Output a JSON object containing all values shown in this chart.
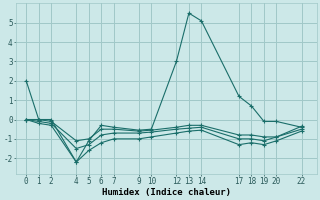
{
  "xlabel": "Humidex (Indice chaleur)",
  "background_color": "#cce8e8",
  "grid_color": "#a0c8c8",
  "line_color": "#1a6e6a",
  "xlim": [
    -0.8,
    23.2
  ],
  "ylim": [
    -2.8,
    6.0
  ],
  "xticks": [
    0,
    1,
    2,
    4,
    5,
    6,
    7,
    9,
    10,
    12,
    13,
    14,
    17,
    18,
    19,
    20,
    22
  ],
  "yticks": [
    -2,
    -1,
    0,
    1,
    2,
    3,
    4,
    5
  ],
  "lines": [
    {
      "x": [
        0,
        1,
        2,
        4,
        5,
        6,
        7,
        9,
        10,
        12,
        13,
        14,
        17,
        18,
        19,
        20,
        22
      ],
      "y": [
        2.0,
        0.0,
        0.0,
        -2.2,
        -1.1,
        -0.3,
        -0.4,
        -0.55,
        -0.5,
        3.0,
        5.5,
        5.1,
        1.2,
        0.7,
        -0.1,
        -0.1,
        -0.4
      ]
    },
    {
      "x": [
        0,
        1,
        2,
        4,
        5,
        6,
        7,
        9,
        10,
        12,
        13,
        14,
        17,
        18,
        19,
        20,
        22
      ],
      "y": [
        0.0,
        0.0,
        -0.1,
        -1.1,
        -1.0,
        -0.5,
        -0.5,
        -0.6,
        -0.55,
        -0.4,
        -0.3,
        -0.3,
        -0.8,
        -0.8,
        -0.9,
        -0.9,
        -0.35
      ]
    },
    {
      "x": [
        0,
        1,
        2,
        4,
        5,
        6,
        7,
        9,
        10,
        12,
        13,
        14,
        17,
        18,
        19,
        20,
        22
      ],
      "y": [
        0.0,
        -0.1,
        -0.2,
        -1.5,
        -1.3,
        -0.8,
        -0.7,
        -0.7,
        -0.65,
        -0.5,
        -0.45,
        -0.4,
        -1.0,
        -1.0,
        -1.1,
        -0.9,
        -0.5
      ]
    },
    {
      "x": [
        0,
        1,
        2,
        4,
        5,
        6,
        7,
        9,
        10,
        12,
        13,
        14,
        17,
        18,
        19,
        20,
        22
      ],
      "y": [
        0.0,
        -0.2,
        -0.3,
        -2.2,
        -1.6,
        -1.2,
        -1.0,
        -1.0,
        -0.9,
        -0.7,
        -0.6,
        -0.55,
        -1.3,
        -1.2,
        -1.3,
        -1.1,
        -0.6
      ]
    }
  ]
}
